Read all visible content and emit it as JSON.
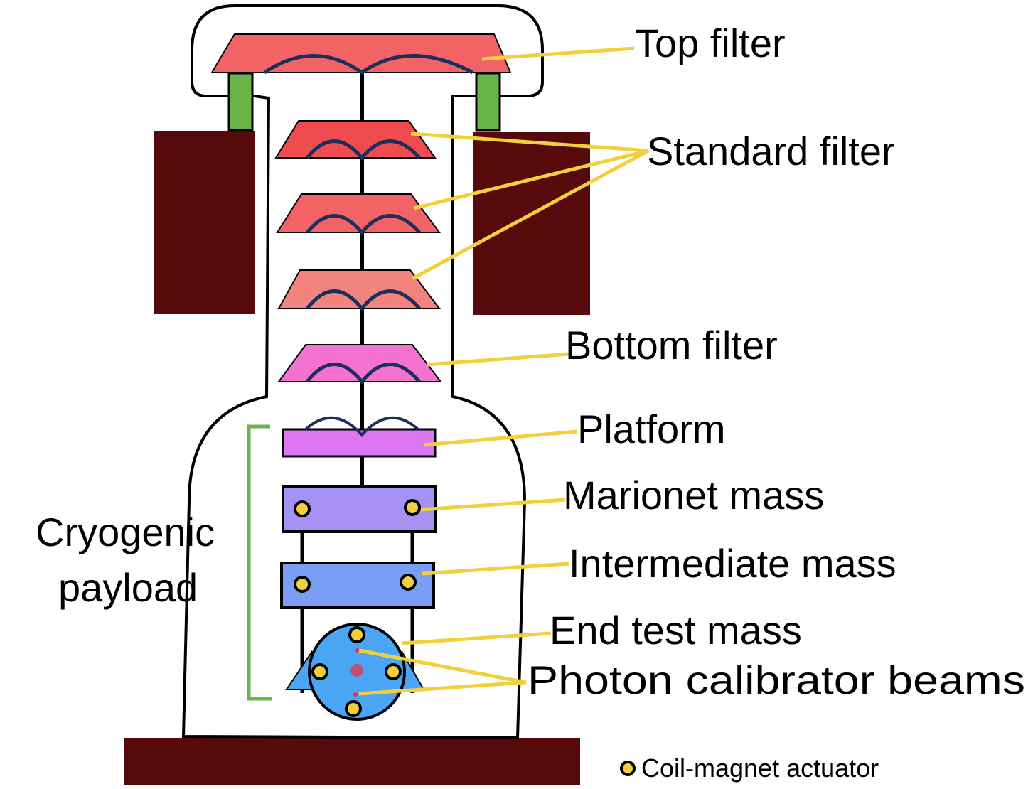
{
  "labels": {
    "top_filter": "Top filter",
    "standard_filter": "Standard filter",
    "bottom_filter": "Bottom filter",
    "platform": "Platform",
    "marionet_mass": "Marionet mass",
    "intermediate_mass": "Intermediate mass",
    "end_test_mass": "End test mass",
    "photon_calibrator_beams": "Photon calibrator beams",
    "cryogenic_payload_line1": "Cryogenic",
    "cryogenic_payload_line2": "payload"
  },
  "legend": {
    "coil_magnet_actuator": "Coil-magnet actuator"
  },
  "colors": {
    "top_filter": "#f26366",
    "standard_filter_1": "#f04b4f",
    "standard_filter_2": "#f26366",
    "standard_filter_3": "#f3837f",
    "bottom_filter": "#f472d0",
    "platform": "#dd76f2",
    "marionet_mass": "#a491f2",
    "intermediate_mass": "#7a9df5",
    "end_test_mass": "#4aa6f5",
    "spring_blade": "#1b2e5c",
    "leader_line": "#f2d03d",
    "actuator": "#f2d03d",
    "support_post": "#6ab54a",
    "ground_block": "#570a0c",
    "bracket": "#6ab54a",
    "laser_spot": "#e8323c"
  }
}
